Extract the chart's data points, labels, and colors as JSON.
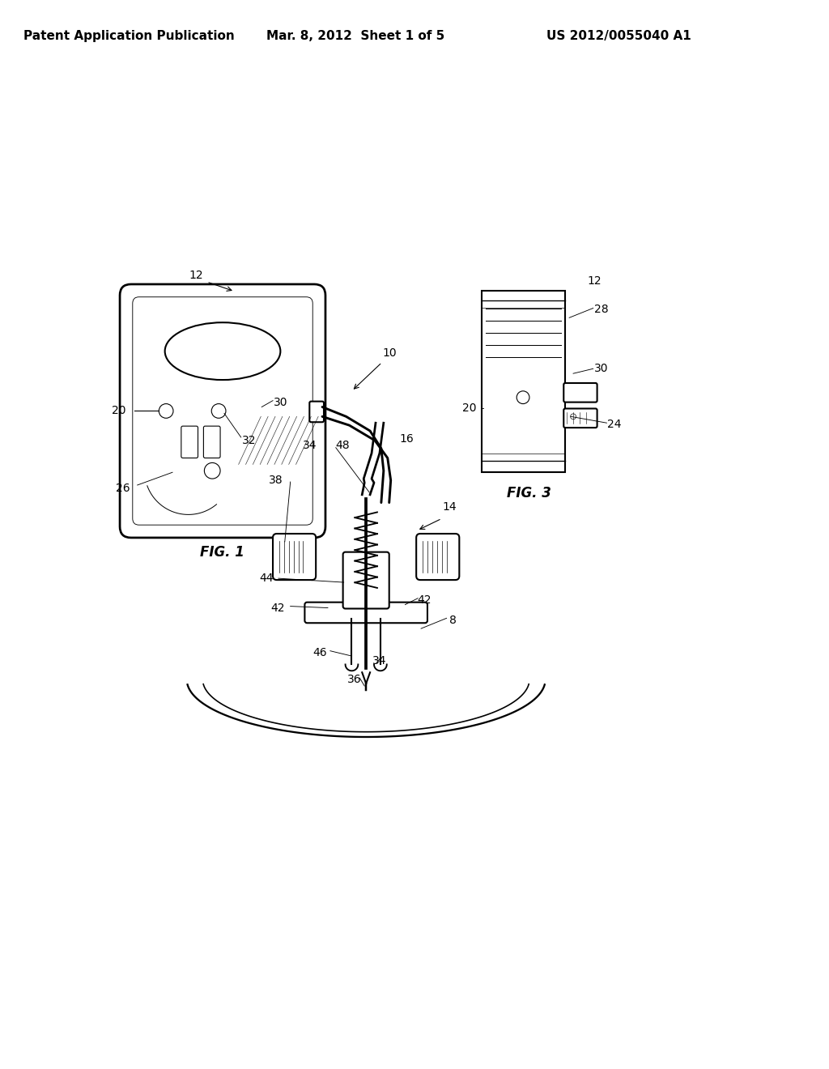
{
  "background_color": "#ffffff",
  "header_left": "Patent Application Publication",
  "header_center": "Mar. 8, 2012  Sheet 1 of 5",
  "header_right": "US 2012/0055040 A1",
  "text_color": "#000000",
  "line_color": "#000000",
  "line_width": 1.5,
  "thin_line": 0.8,
  "fig1_label": "FIG. 1",
  "fig3_label": "FIG. 3"
}
